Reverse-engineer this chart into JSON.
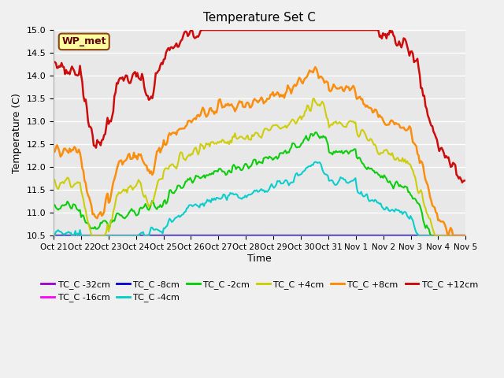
{
  "title": "Temperature Set C",
  "xlabel": "Time",
  "ylabel": "Temperature (C)",
  "ylim": [
    10.5,
    15.0
  ],
  "yticks": [
    10.5,
    11.0,
    11.5,
    12.0,
    12.5,
    13.0,
    13.5,
    14.0,
    14.5,
    15.0
  ],
  "xtick_labels": [
    "Oct 21",
    "Oct 22",
    "Oct 23",
    "Oct 24",
    "Oct 25",
    "Oct 26",
    "Oct 27",
    "Oct 28",
    "Oct 29",
    "Oct 30",
    "Oct 31",
    "Nov 1",
    "Nov 2",
    "Nov 3",
    "Nov 4",
    "Nov 5"
  ],
  "wp_met_label": "WP_met",
  "series": [
    {
      "label": "TC_C -32cm",
      "color": "#9900CC"
    },
    {
      "label": "TC_C -16cm",
      "color": "#FF00FF"
    },
    {
      "label": "TC_C -8cm",
      "color": "#0000CC"
    },
    {
      "label": "TC_C -4cm",
      "color": "#00CCCC"
    },
    {
      "label": "TC_C -2cm",
      "color": "#00CC00"
    },
    {
      "label": "TC_C +4cm",
      "color": "#CCCC00"
    },
    {
      "label": "TC_C +8cm",
      "color": "#FF8800"
    },
    {
      "label": "TC_C +12cm",
      "color": "#CC0000"
    }
  ],
  "plot_bg_color": "#E8E8E8",
  "n_points": 360
}
